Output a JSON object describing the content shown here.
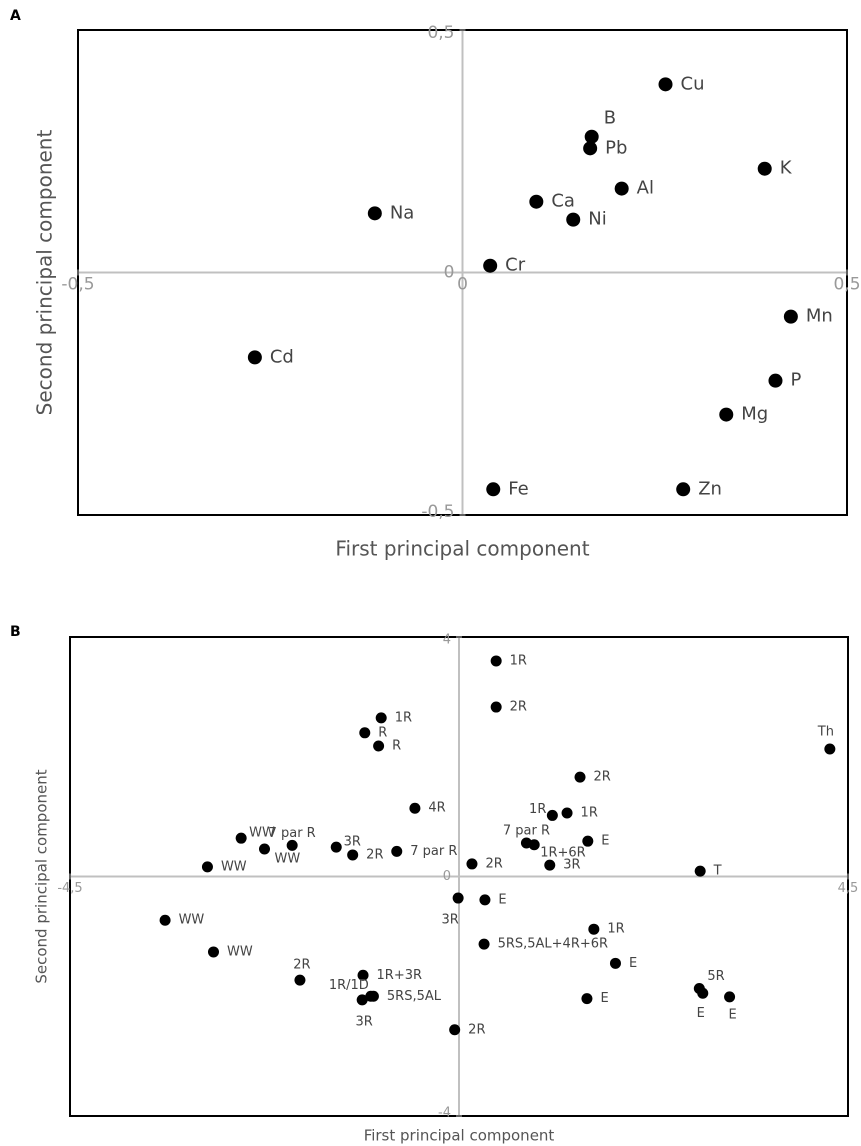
{
  "chart_data": [
    {
      "type": "scatter",
      "panel": "A",
      "xlabel": "First principal component",
      "ylabel": "Second principal component",
      "xlim": [
        -0.5,
        0.5
      ],
      "ylim": [
        -0.5,
        0.5
      ],
      "xticks": [
        {
          "value": -0.5,
          "label": "-0,5"
        },
        0,
        {
          "value": 0.5,
          "label": "0,5"
        }
      ],
      "yticks": [
        {
          "value": 0.5,
          "label": "0,5"
        },
        0,
        {
          "value": -0.5,
          "label": "-0,5"
        }
      ],
      "series": [
        {
          "color": "#000000",
          "labels": [
            "Cu",
            "B",
            "Pb",
            "K",
            "Al",
            "Ca",
            "Na",
            "Ni",
            "Cr",
            "Mn",
            "Cd",
            "P",
            "Mg",
            "Fe",
            "Zn"
          ],
          "x": [
            0.264,
            0.168,
            0.166,
            0.393,
            0.207,
            0.096,
            -0.114,
            0.144,
            0.036,
            0.427,
            -0.27,
            0.407,
            0.343,
            0.04,
            0.287
          ],
          "values": [
            0.388,
            0.28,
            0.256,
            0.214,
            0.173,
            0.146,
            0.122,
            0.109,
            0.014,
            -0.091,
            -0.175,
            -0.223,
            -0.293,
            -0.447,
            -0.447
          ]
        }
      ]
    },
    {
      "type": "scatter",
      "panel": "B",
      "xlabel": "First principal component",
      "ylabel": "Second principal component",
      "xlim": [
        -4.5,
        4.5
      ],
      "ylim": [
        -4,
        4
      ],
      "xticks": [
        {
          "value": -4.5,
          "label": "-4,5"
        },
        {
          "value": 4.5,
          "label": "4,5"
        }
      ],
      "yticks": [
        4,
        0,
        -4
      ],
      "series": [
        {
          "color": "#000000",
          "labels": [
            "1R",
            "2R",
            "1R",
            "R",
            "R",
            "Th",
            "2R",
            "4R",
            "1R",
            "1R",
            "WW",
            "7 par R",
            "WW",
            "3R",
            "2R",
            "7 par R",
            "7 par R",
            "1R+6R",
            "E",
            "3R",
            "WW",
            "2R",
            "T",
            "3R",
            "E",
            "WW",
            "1R",
            "5RS,5AL+4R+6R",
            "WW",
            "E",
            "2R",
            "1R+3R",
            "1R/1D",
            "3R",
            "5RS,5AL",
            "5R",
            "E",
            "E",
            "E",
            "2R"
          ],
          "x": [
            0.43,
            0.43,
            -0.9,
            -1.09,
            -0.93,
            4.29,
            1.4,
            -0.51,
            1.08,
            1.25,
            -2.52,
            -1.93,
            -2.25,
            -1.42,
            -1.23,
            -0.72,
            0.78,
            0.87,
            1.49,
            1.05,
            -2.91,
            0.15,
            2.79,
            -0.01,
            0.3,
            -3.4,
            1.56,
            0.29,
            -2.84,
            1.81,
            -1.84,
            -1.11,
            -1.02,
            -1.12,
            -0.99,
            2.78,
            2.82,
            3.13,
            1.48,
            -0.05
          ],
          "values": [
            3.6,
            2.83,
            2.65,
            2.4,
            2.18,
            2.13,
            1.66,
            1.14,
            1.02,
            1.06,
            0.64,
            0.52,
            0.46,
            0.49,
            0.36,
            0.42,
            0.56,
            0.53,
            0.59,
            0.19,
            0.16,
            0.21,
            0.09,
            -0.36,
            -0.39,
            -0.73,
            -0.88,
            -1.13,
            -1.26,
            -1.45,
            -1.73,
            -1.65,
            -2.0,
            -2.06,
            -2.0,
            -1.87,
            -1.95,
            -2.01,
            -2.04,
            -2.56
          ]
        }
      ]
    }
  ]
}
